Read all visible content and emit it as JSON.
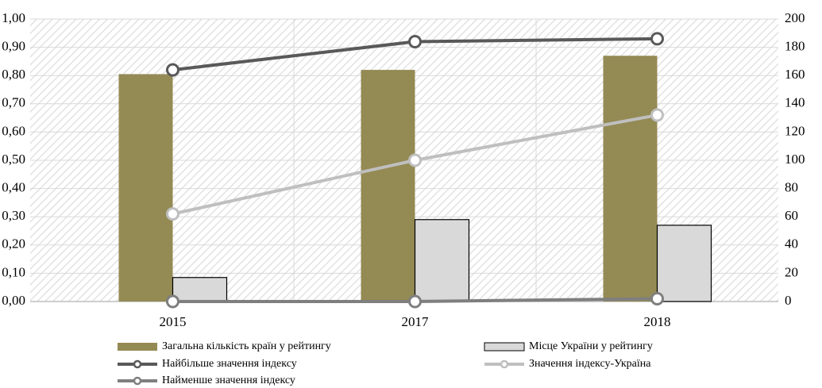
{
  "chart_data": {
    "type": "bar-line",
    "categories": [
      "2015",
      "2017",
      "2018"
    ],
    "series": [
      {
        "name": "Загальна кількість країн у рейтингу",
        "type": "bar",
        "axis": "y2",
        "color": "#948a54",
        "values": [
          161,
          164,
          174
        ]
      },
      {
        "name": "Місце України у рейтингу",
        "type": "bar",
        "axis": "y2",
        "color": "#d9d9d9",
        "values": [
          17,
          58,
          54
        ]
      },
      {
        "name": "Найбільше значення індексу",
        "type": "line",
        "axis": "y",
        "color": "#595959",
        "values": [
          0.82,
          0.92,
          0.93
        ]
      },
      {
        "name": "Значення індексу-Україна",
        "type": "line",
        "axis": "y",
        "color": "#bfbfbf",
        "values": [
          0.31,
          0.5,
          0.66
        ]
      },
      {
        "name": "Найменше значення індексу",
        "type": "line",
        "axis": "y",
        "color": "#7f7f7f",
        "values": [
          0.0,
          0.0,
          0.01
        ]
      }
    ],
    "ylim": [
      0,
      1
    ],
    "yticks": [
      {
        "value": 0,
        "label": "0,00"
      },
      {
        "value": 0.1,
        "label": "0,10"
      },
      {
        "value": 0.2,
        "label": "0,20"
      },
      {
        "value": 0.3,
        "label": "0,30"
      },
      {
        "value": 0.4,
        "label": "0,40"
      },
      {
        "value": 0.5,
        "label": "0,50"
      },
      {
        "value": 0.6,
        "label": "0,60"
      },
      {
        "value": 0.7,
        "label": "0,70"
      },
      {
        "value": 0.8,
        "label": "0,80"
      },
      {
        "value": 0.9,
        "label": "0,90"
      },
      {
        "value": 1,
        "label": "1,00"
      }
    ],
    "y2lim": [
      0,
      200
    ],
    "y2ticks": [
      0,
      20,
      40,
      60,
      80,
      100,
      120,
      140,
      160,
      180,
      200
    ],
    "grid": true,
    "legend": "bottom"
  }
}
